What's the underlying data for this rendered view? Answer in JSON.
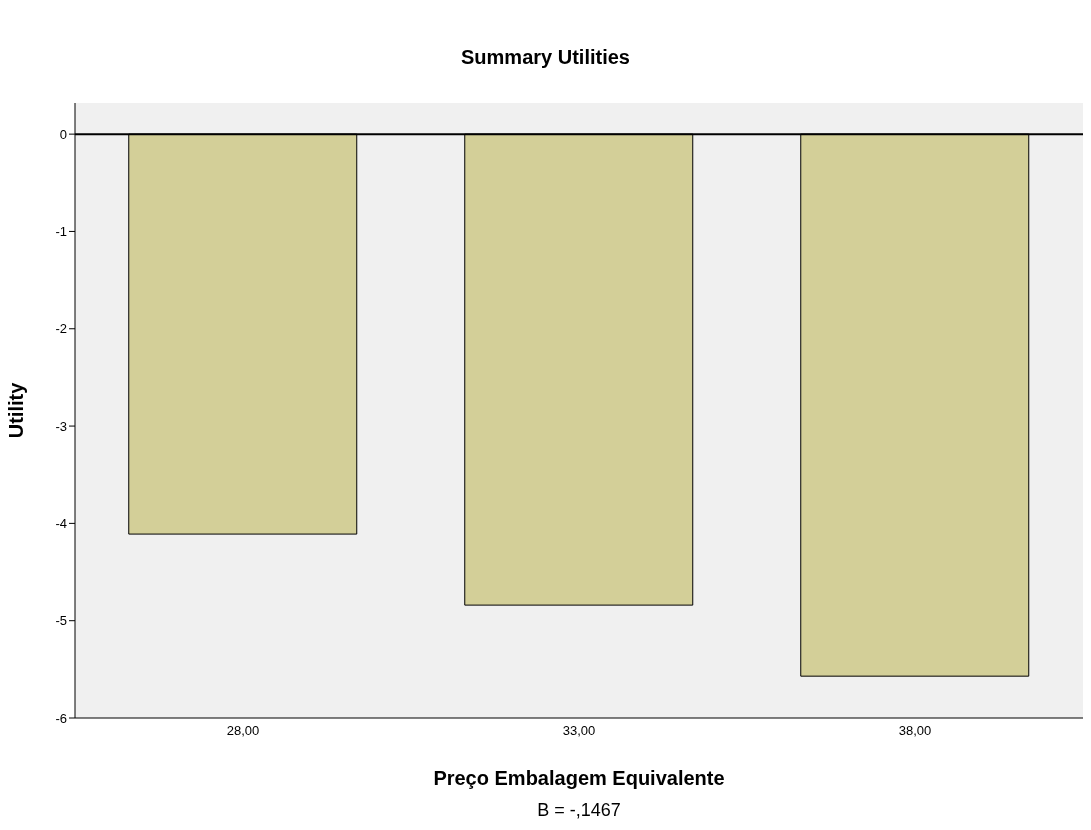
{
  "chart_data": {
    "type": "bar",
    "title": "Summary Utilities",
    "xlabel": "Preço Embalagem Equivalente",
    "ylabel": "Utility",
    "categories": [
      "28,00",
      "33,00",
      "38,00"
    ],
    "values": [
      -4.11,
      -4.84,
      -5.57
    ],
    "color": "#d3cf98",
    "ylim": [
      -6,
      0.32
    ],
    "yticks": [
      0,
      -1,
      -2,
      -3,
      -4,
      -5,
      -6
    ],
    "ref_lines": [
      {
        "axis": "y",
        "value": 0,
        "color": "#000000"
      }
    ],
    "annotations": [
      "B = -,1467"
    ]
  }
}
